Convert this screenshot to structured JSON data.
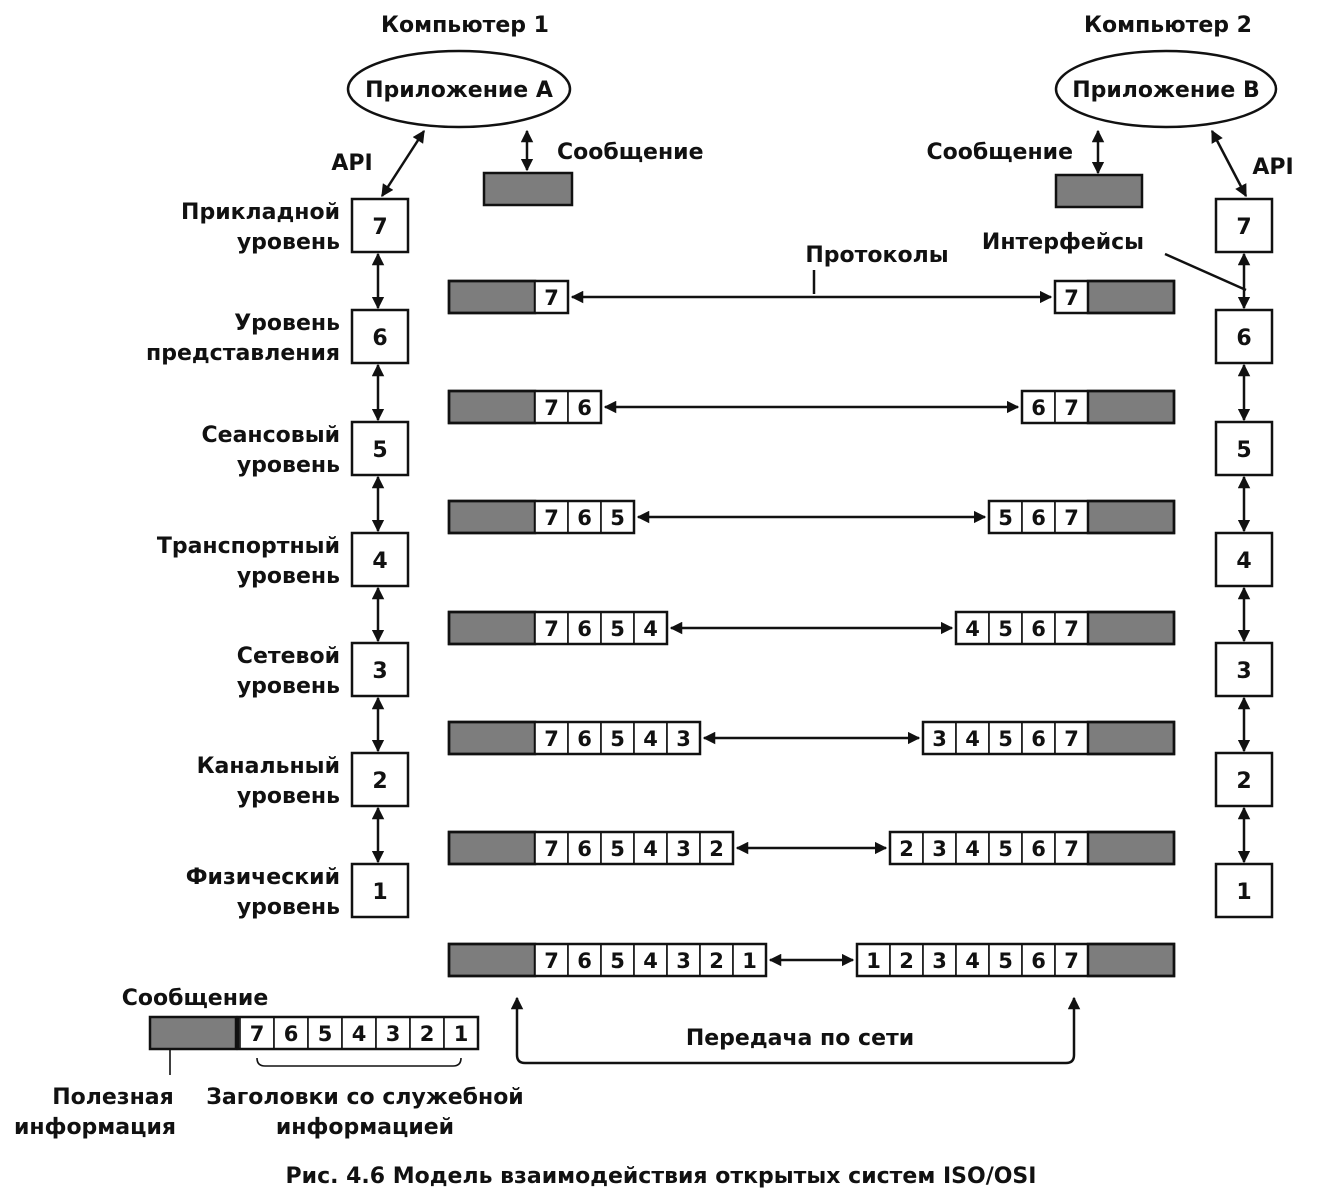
{
  "computer_a": "Компьютер 1",
  "computer_b": "Компьютер 2",
  "app_a": "Приложение A",
  "app_b": "Приложение B",
  "api_a": "API",
  "api_b": "API",
  "message_a": "Сообщение",
  "message_b": "Сообщение",
  "protocols_label": "Протоколы",
  "interfaces_label": "Интерфейсы",
  "levels": [
    {
      "num": "7",
      "line1": "Прикладной",
      "line2": "уровень"
    },
    {
      "num": "6",
      "line1": "Уровень",
      "line2": "представления"
    },
    {
      "num": "5",
      "line1": "Сеансовый",
      "line2": "уровень"
    },
    {
      "num": "4",
      "line1": "Транспортный",
      "line2": "уровень"
    },
    {
      "num": "3",
      "line1": "Сетевой",
      "line2": "уровень"
    },
    {
      "num": "2",
      "line1": "Канальный",
      "line2": "уровень"
    },
    {
      "num": "1",
      "line1": "Физический",
      "line2": "уровень"
    }
  ],
  "left_packets": [
    [
      "7"
    ],
    [
      "7",
      "6"
    ],
    [
      "7",
      "6",
      "5"
    ],
    [
      "7",
      "6",
      "5",
      "4"
    ],
    [
      "7",
      "6",
      "5",
      "4",
      "3"
    ],
    [
      "7",
      "6",
      "5",
      "4",
      "3",
      "2"
    ],
    [
      "7",
      "6",
      "5",
      "4",
      "3",
      "2",
      "1"
    ]
  ],
  "right_packets": [
    [
      "7"
    ],
    [
      "6",
      "7"
    ],
    [
      "5",
      "6",
      "7"
    ],
    [
      "4",
      "5",
      "6",
      "7"
    ],
    [
      "3",
      "4",
      "5",
      "6",
      "7"
    ],
    [
      "2",
      "3",
      "4",
      "5",
      "6",
      "7"
    ],
    [
      "1",
      "2",
      "3",
      "4",
      "5",
      "6",
      "7"
    ]
  ],
  "legend": {
    "message": "Сообщение",
    "headers": [
      "7",
      "6",
      "5",
      "4",
      "3",
      "2",
      "1"
    ],
    "payload_line1": "Полезная",
    "payload_line2": "информация",
    "headers_line1": "Заголовки со служебной",
    "headers_line2": "информацией"
  },
  "network_label": "Передача по сети",
  "caption": "Рис. 4.6  Модель взаимодействия открытых систем ISO/OSI"
}
